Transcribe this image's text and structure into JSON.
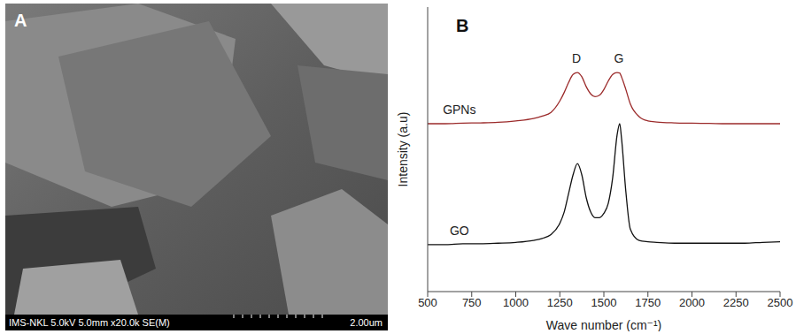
{
  "image_panel": {
    "panel_label": "A",
    "info_bar": "IMS-NKL 5.0kV 5.0mm x20.0k SE(M)",
    "scale_bar": "2.00um"
  },
  "chart_data": {
    "type": "line",
    "panel_label": "B",
    "x_label": "Wave number (cm⁻¹)",
    "y_label": "Intensity (a.u)",
    "x": [
      500,
      600,
      700,
      800,
      900,
      1000,
      1100,
      1150,
      1200,
      1250,
      1275,
      1300,
      1325,
      1350,
      1375,
      1400,
      1425,
      1450,
      1475,
      1500,
      1525,
      1550,
      1575,
      1590,
      1600,
      1625,
      1650,
      1700,
      1750,
      1800,
      1900,
      2000,
      2100,
      2200,
      2300,
      2400,
      2500
    ],
    "series": [
      {
        "name": "GPNs",
        "color": "#9b2a2a",
        "values": [
          59,
          59,
          59.2,
          59.3,
          59.5,
          60,
          60.8,
          61.7,
          63,
          67,
          70,
          73.5,
          76.3,
          77,
          75.5,
          72,
          69.5,
          68.5,
          69,
          71,
          74,
          76.3,
          77,
          76.8,
          75.5,
          71,
          66,
          61.5,
          60,
          59.6,
          59.3,
          59.2,
          59.1,
          59,
          59,
          59,
          59
        ]
      },
      {
        "name": "GO",
        "color": "#111111",
        "values": [
          16.5,
          16.5,
          16.8,
          16.8,
          17,
          17.3,
          18,
          18.7,
          20,
          24,
          28,
          34.5,
          41,
          45,
          41,
          33,
          28,
          26,
          26,
          27.5,
          31,
          40,
          55,
          59,
          54,
          35,
          22,
          18,
          17.5,
          17.3,
          17,
          17,
          17,
          17,
          17,
          17.3,
          17.5
        ]
      }
    ],
    "xlim": [
      500,
      2500
    ],
    "xticks": [
      500,
      750,
      1000,
      1250,
      1500,
      1750,
      2000,
      2250,
      2500
    ],
    "ylim": [
      0,
      100
    ],
    "tick_labels": "x",
    "grid": false,
    "annotations": [
      {
        "text": "D",
        "x": 1345,
        "y": 82
      },
      {
        "text": "G",
        "x": 1585,
        "y": 82
      }
    ]
  }
}
